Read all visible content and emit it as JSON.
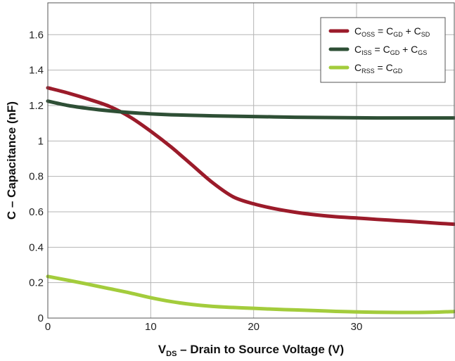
{
  "chart_data": {
    "type": "line",
    "title": "",
    "xlabel_main": "V",
    "xlabel_sub": "DS",
    "xlabel_rest": " – Drain to Source Voltage (V)",
    "ylabel": "C – Capacitance (nF)",
    "xlim": [
      0,
      39.5
    ],
    "ylim": [
      0,
      1.78
    ],
    "x_ticks": [
      0,
      10,
      20,
      30
    ],
    "x_tick_labels": [
      "0",
      "10",
      "20",
      "30"
    ],
    "y_ticks": [
      0,
      0.2,
      0.4,
      0.6,
      0.8,
      1,
      1.2,
      1.4,
      1.6
    ],
    "y_tick_labels": [
      "0",
      "0.2",
      "0.4",
      "0.6",
      "0.8",
      "1",
      "1.2",
      "1.4",
      "1.6"
    ],
    "grid": true,
    "legend_position": "top-right",
    "series": [
      {
        "legend_parts": [
          "C",
          "OSS",
          " = C",
          "GD",
          " + C",
          "SD"
        ],
        "color": "#9b1b2a",
        "x": [
          0,
          2,
          4,
          6,
          8,
          10,
          12,
          14,
          16,
          18,
          20,
          22,
          24,
          26,
          28,
          30,
          32,
          34,
          36,
          38,
          39.5
        ],
        "y": [
          1.3,
          1.27,
          1.235,
          1.195,
          1.135,
          1.055,
          0.965,
          0.865,
          0.765,
          0.685,
          0.645,
          0.618,
          0.598,
          0.583,
          0.572,
          0.565,
          0.557,
          0.55,
          0.543,
          0.535,
          0.53
        ]
      },
      {
        "legend_parts": [
          "C",
          "ISS",
          " = C",
          "GD",
          " + C",
          "GS"
        ],
        "color": "#2e4f35",
        "x": [
          0,
          2,
          4,
          6,
          8,
          10,
          12,
          14,
          16,
          18,
          20,
          22,
          24,
          26,
          28,
          30,
          32,
          34,
          36,
          38,
          39.5
        ],
        "y": [
          1.225,
          1.2,
          1.183,
          1.17,
          1.16,
          1.153,
          1.148,
          1.145,
          1.142,
          1.14,
          1.138,
          1.136,
          1.134,
          1.133,
          1.132,
          1.131,
          1.13,
          1.13,
          1.13,
          1.13,
          1.13
        ]
      },
      {
        "legend_parts": [
          "C",
          "RSS",
          " = C",
          "GD",
          "",
          ""
        ],
        "color": "#a3cc3c",
        "x": [
          0,
          2,
          4,
          6,
          8,
          10,
          12,
          14,
          16,
          18,
          20,
          22,
          24,
          26,
          28,
          30,
          32,
          34,
          36,
          38,
          39.5
        ],
        "y": [
          0.235,
          0.213,
          0.19,
          0.166,
          0.142,
          0.115,
          0.093,
          0.077,
          0.066,
          0.06,
          0.055,
          0.05,
          0.046,
          0.042,
          0.038,
          0.035,
          0.033,
          0.032,
          0.032,
          0.034,
          0.037
        ]
      }
    ]
  }
}
